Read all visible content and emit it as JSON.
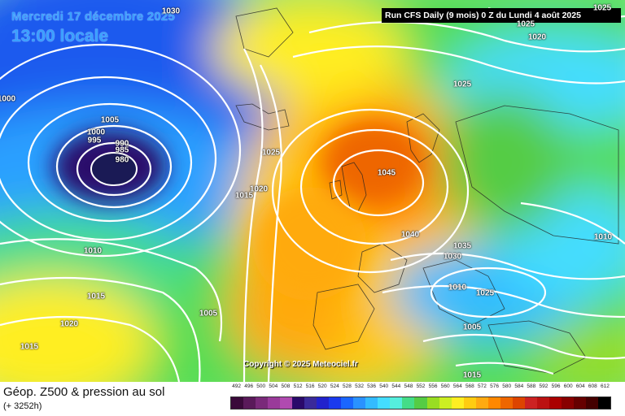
{
  "header": {
    "date": "Mercredi 17 décembre 2025",
    "local_time": "13:00 locale",
    "run_info": "Run CFS Daily (9 mois) 0 Z du Lundi 4 août 2025"
  },
  "copyright": "Copyright © 2025 Meteociel.fr",
  "footer": {
    "title": "Géop. Z500 & pression au sol",
    "subtitle": "(+ 3252h)"
  },
  "pressure_labels": [
    "1030",
    "1025",
    "1020",
    "1025",
    "1025",
    "1000",
    "1005",
    "1000",
    "995",
    "990",
    "985",
    "980",
    "1025",
    "1020",
    "1015",
    "1045",
    "1040",
    "1035",
    "1030",
    "1010",
    "1010",
    "1015",
    "1020",
    "1015",
    "1005",
    "1010",
    "1025",
    "1005",
    "1015"
  ],
  "legend": {
    "ticks": [
      "492",
      "496",
      "500",
      "504",
      "508",
      "512",
      "516",
      "520",
      "524",
      "528",
      "532",
      "536",
      "540",
      "544",
      "548",
      "552",
      "556",
      "560",
      "564",
      "568",
      "572",
      "576",
      "580",
      "584",
      "588",
      "592",
      "596",
      "600",
      "604",
      "608",
      "612"
    ],
    "colors": [
      "#3a0a3a",
      "#5a1a5a",
      "#7a2a7a",
      "#9a3a9a",
      "#b04ab0",
      "#2a0a6a",
      "#3a2a9a",
      "#2222cc",
      "#1a3aee",
      "#1a66ff",
      "#2a92ff",
      "#33bbff",
      "#44ddff",
      "#55eedd",
      "#44dd88",
      "#55cc44",
      "#99dd22",
      "#ccee22",
      "#ffee22",
      "#ffcc11",
      "#ffaa11",
      "#ff8800",
      "#ee6600",
      "#dd4400",
      "#cc2222",
      "#bb1111",
      "#aa0000",
      "#880000",
      "#660000",
      "#440000",
      "#000000"
    ]
  }
}
